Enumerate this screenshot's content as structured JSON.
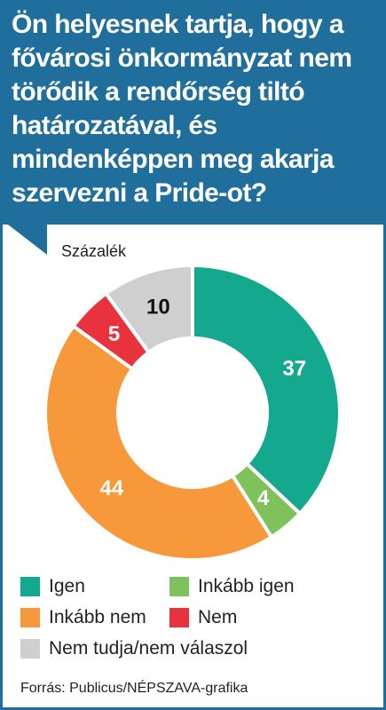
{
  "title": "Ön helyesnek tartja, hogy a fővárosi önkormányzat nem törődik a rendőrség tiltó határozatával, és mindenképpen meg akarja szervezni a Pride-ot?",
  "unit_label": "Százalék",
  "source": "Forrás: Publicus/NÉPSZAVA-grafika",
  "chart_data": {
    "type": "pie",
    "donut": true,
    "categories": [
      "Igen",
      "Inkább igen",
      "Inkább nem",
      "Nem",
      "Nem tudja/nem válaszol"
    ],
    "values": [
      37,
      4,
      44,
      5,
      10
    ],
    "colors": [
      "#14a98f",
      "#7fc15b",
      "#f7983a",
      "#e8333f",
      "#cfcfcf"
    ],
    "label_colors": [
      "#ffffff",
      "#ffffff",
      "#ffffff",
      "#ffffff",
      "#111111"
    ],
    "legend_position": "bottom"
  },
  "legend": [
    {
      "label": "Igen",
      "color": "#14a98f"
    },
    {
      "label": "Inkább igen",
      "color": "#7fc15b"
    },
    {
      "label": "Inkább nem",
      "color": "#f7983a"
    },
    {
      "label": "Nem",
      "color": "#e8333f"
    },
    {
      "label": "Nem tudja/nem válaszol",
      "color": "#cfcfcf"
    }
  ],
  "colors": {
    "header": "#1f6e9c"
  }
}
